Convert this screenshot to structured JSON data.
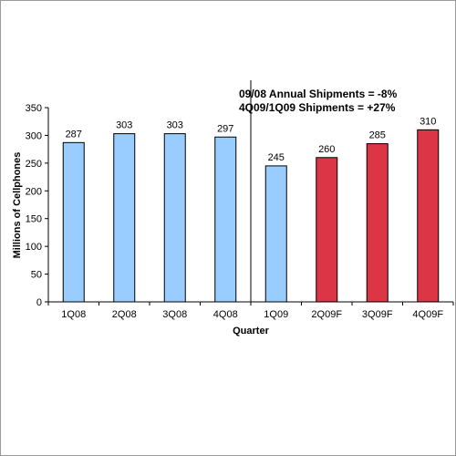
{
  "chart_data": {
    "type": "bar",
    "categories": [
      "1Q08",
      "2Q08",
      "3Q08",
      "4Q08",
      "1Q09",
      "2Q09F",
      "3Q09F",
      "4Q09F"
    ],
    "values": [
      287,
      303,
      303,
      297,
      245,
      260,
      285,
      310
    ],
    "data_labels": [
      "287",
      "303",
      "303",
      "297",
      "245",
      "260",
      "285",
      "310"
    ],
    "bar_colors": [
      "#99ccff",
      "#99ccff",
      "#99ccff",
      "#99ccff",
      "#99ccff",
      "#dc3545",
      "#dc3545",
      "#dc3545"
    ],
    "xlabel": "Quarter",
    "ylabel": "Millions of Cellphones",
    "ylim": [
      0,
      350
    ],
    "yticks": [
      0,
      50,
      100,
      150,
      200,
      250,
      300,
      350
    ],
    "ytick_labels": [
      "0",
      "50",
      "100",
      "150",
      "200",
      "250",
      "300",
      "350"
    ],
    "grid": false,
    "divider_after_category": "4Q08",
    "annotations": [
      "09/08 Annual Shipments = -8%",
      "4Q09/1Q09 Shipments = +27%"
    ]
  }
}
